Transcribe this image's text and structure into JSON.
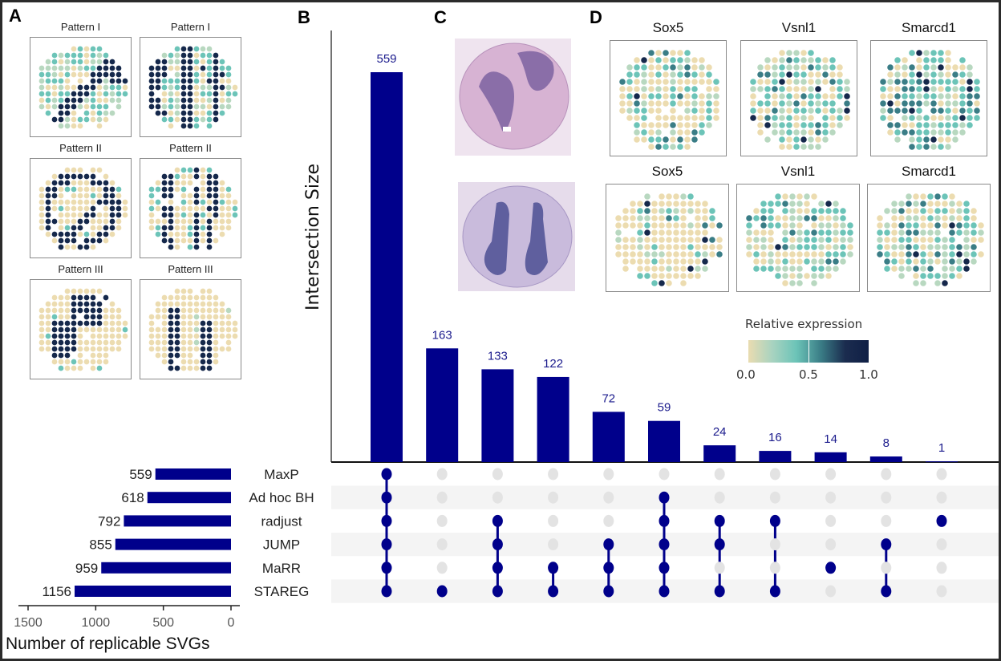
{
  "panels": {
    "A": {
      "letter": "A",
      "titles": [
        "Pattern I",
        "Pattern I",
        "Pattern II",
        "Pattern II",
        "Pattern III",
        "Pattern III"
      ]
    },
    "B": {
      "letter": "B"
    },
    "C": {
      "letter": "C",
      "images": [
        "H&E tissue section (pink)",
        "H&E tissue section (purple)"
      ]
    },
    "D": {
      "letter": "D",
      "titles": [
        "Sox5",
        "Vsnl1",
        "Smarcd1",
        "Sox5",
        "Vsnl1",
        "Smarcd1"
      ],
      "colorbar": {
        "title": "Relative expression",
        "ticks": [
          "0.0",
          "0.5",
          "1.0"
        ],
        "colors": [
          "#ecdcb0",
          "#a9d3c0",
          "#6cc4b8",
          "#3a7d86",
          "#1b2c4f"
        ]
      }
    }
  },
  "colors": {
    "bar": "#00008b",
    "dot_active": "#00008b",
    "dot_inactive": "#e3e3e3",
    "stripe": "#f4f4f4",
    "label": "#1a1a8c",
    "spot_palette": [
      "#ecdcb0",
      "#b8d8c0",
      "#6cc4b8",
      "#3a7d86",
      "#15284b"
    ]
  },
  "chart_data": {
    "type": "bar",
    "title": "",
    "ylabel": "Intersection Size",
    "set_size_xlabel": "Number of replicable SVGs",
    "sets": [
      "MaxP",
      "Ad hoc BH",
      "radjust",
      "JUMP",
      "MaRR",
      "STAREG"
    ],
    "set_sizes": [
      559,
      618,
      792,
      855,
      959,
      1156
    ],
    "set_size_ticks": [
      "1500",
      "1000",
      "500",
      "0"
    ],
    "set_size_xlim": [
      1500,
      0
    ],
    "intersections": [
      {
        "value": 559,
        "label": "559",
        "members": [
          "MaxP",
          "Ad hoc BH",
          "radjust",
          "JUMP",
          "MaRR",
          "STAREG"
        ]
      },
      {
        "value": 163,
        "label": "163",
        "members": [
          "STAREG"
        ]
      },
      {
        "value": 133,
        "label": "133",
        "members": [
          "radjust",
          "JUMP",
          "MaRR",
          "STAREG"
        ]
      },
      {
        "value": 122,
        "label": "122",
        "members": [
          "MaRR",
          "STAREG"
        ]
      },
      {
        "value": 72,
        "label": "72",
        "members": [
          "JUMP",
          "MaRR",
          "STAREG"
        ]
      },
      {
        "value": 59,
        "label": "59",
        "members": [
          "Ad hoc BH",
          "radjust",
          "JUMP",
          "MaRR",
          "STAREG"
        ]
      },
      {
        "value": 24,
        "label": "24",
        "members": [
          "radjust",
          "JUMP",
          "STAREG"
        ]
      },
      {
        "value": 16,
        "label": "16",
        "members": [
          "radjust",
          "STAREG"
        ]
      },
      {
        "value": 14,
        "label": "14",
        "members": [
          "MaRR"
        ]
      },
      {
        "value": 8,
        "label": "8",
        "members": [
          "JUMP",
          "STAREG"
        ]
      },
      {
        "value": 1,
        "label": "1",
        "members": [
          "radjust"
        ]
      }
    ],
    "ylim": [
      0,
      559
    ]
  }
}
